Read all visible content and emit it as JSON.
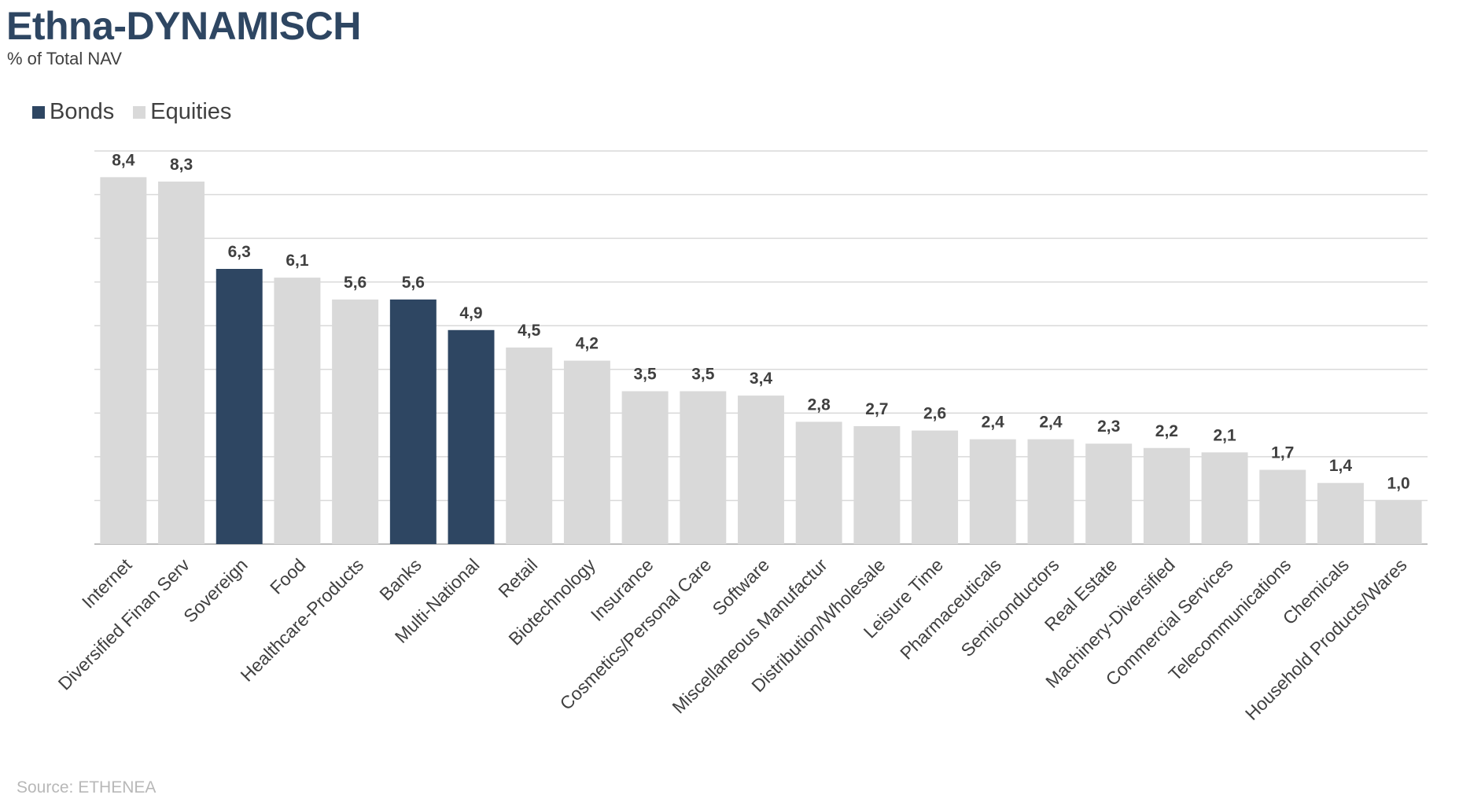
{
  "header": {
    "title": "Ethna-DYNAMISCH",
    "subtitle": "% of Total NAV"
  },
  "footer": {
    "source": "Source: ETHENEA"
  },
  "colors": {
    "bonds": "#2e4662",
    "equities": "#d9d9d9",
    "grid": "#d9d9d9",
    "axis": "#bfbfbf",
    "text": "#404040"
  },
  "chart_data": {
    "type": "bar",
    "title": "Ethna-DYNAMISCH",
    "subtitle": "% of Total NAV",
    "xlabel": "",
    "ylabel": "",
    "ylim": [
      0,
      9
    ],
    "grid": true,
    "legend_position": "top-left",
    "legend": [
      {
        "name": "Bonds",
        "color": "#2e4662"
      },
      {
        "name": "Equities",
        "color": "#d9d9d9"
      }
    ],
    "categories": [
      "Internet",
      "Diversified Finan Serv",
      "Sovereign",
      "Food",
      "Healthcare-Products",
      "Banks",
      "Multi-National",
      "Retail",
      "Biotechnology",
      "Insurance",
      "Cosmetics/Personal Care",
      "Software",
      "Miscellaneous Manufactur",
      "Distribution/Wholesale",
      "Leisure Time",
      "Pharmaceuticals",
      "Semiconductors",
      "Real Estate",
      "Machinery-Diversified",
      "Commercial Services",
      "Telecommunications",
      "Chemicals",
      "Household Products/Wares"
    ],
    "values": [
      8.4,
      8.3,
      6.3,
      6.1,
      5.6,
      5.6,
      4.9,
      4.5,
      4.2,
      3.5,
      3.5,
      3.4,
      2.8,
      2.7,
      2.6,
      2.4,
      2.4,
      2.3,
      2.2,
      2.1,
      1.7,
      1.4,
      1.0
    ],
    "value_labels": [
      "8,4",
      "8,3",
      "6,3",
      "6,1",
      "5,6",
      "5,6",
      "4,9",
      "4,5",
      "4,2",
      "3,5",
      "3,5",
      "3,4",
      "2,8",
      "2,7",
      "2,6",
      "2,4",
      "2,4",
      "2,3",
      "2,2",
      "2,1",
      "1,7",
      "1,4",
      "1,0"
    ],
    "series_membership": [
      "Equities",
      "Equities",
      "Bonds",
      "Equities",
      "Equities",
      "Bonds",
      "Bonds",
      "Equities",
      "Equities",
      "Equities",
      "Equities",
      "Equities",
      "Equities",
      "Equities",
      "Equities",
      "Equities",
      "Equities",
      "Equities",
      "Equities",
      "Equities",
      "Equities",
      "Equities",
      "Equities"
    ]
  }
}
